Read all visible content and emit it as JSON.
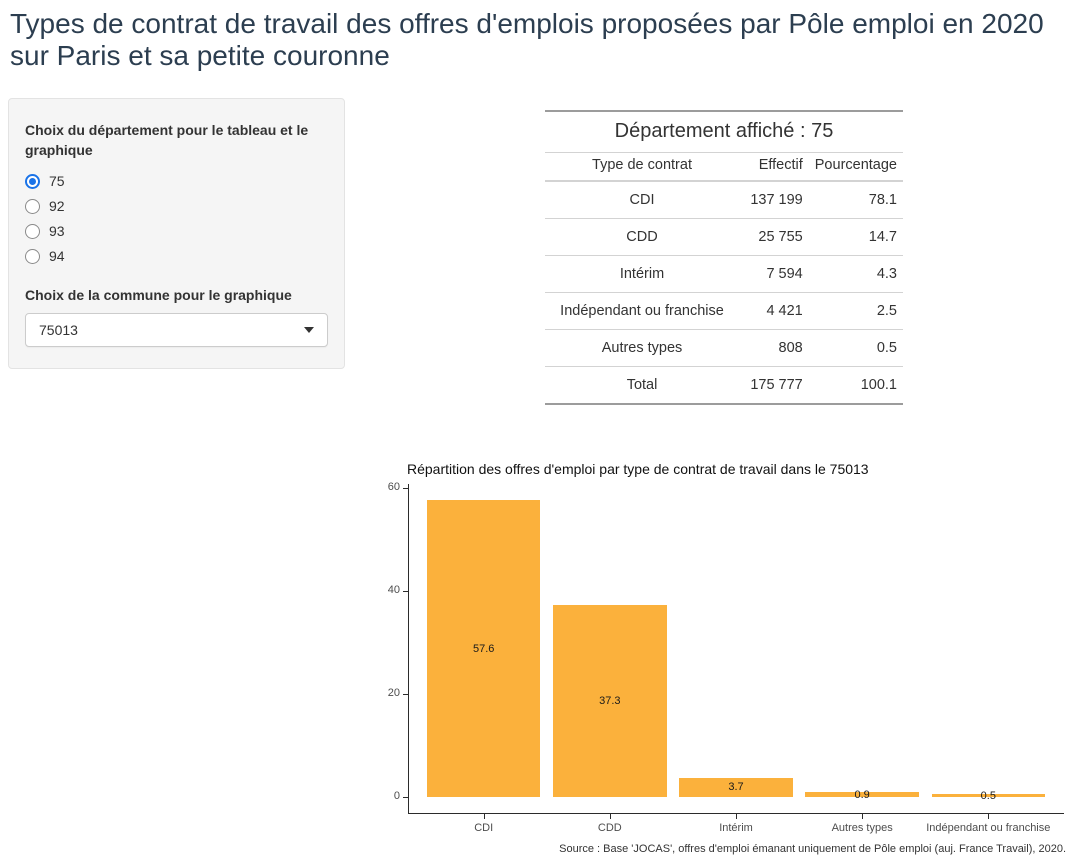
{
  "page": {
    "title": "Types de contrat de travail des offres d'emplois proposées par Pôle emploi en 2020 sur Paris et sa petite couronne"
  },
  "sidebar": {
    "dept_label": "Choix du département pour le tableau et le graphique",
    "dept_options": [
      {
        "label": "75",
        "selected": true
      },
      {
        "label": "92",
        "selected": false
      },
      {
        "label": "93",
        "selected": false
      },
      {
        "label": "94",
        "selected": false
      }
    ],
    "commune_label": "Choix de la commune pour le graphique",
    "commune_value": "75013"
  },
  "table": {
    "title": "Département affiché : 75",
    "columns": [
      "Type de contrat",
      "Effectif",
      "Pourcentage"
    ],
    "rows": [
      {
        "type": "CDI",
        "effectif": "137 199",
        "pourcentage": "78.1"
      },
      {
        "type": "CDD",
        "effectif": "25 755",
        "pourcentage": "14.7"
      },
      {
        "type": "Intérim",
        "effectif": "7 594",
        "pourcentage": "4.3"
      },
      {
        "type": "Indépendant ou franchise",
        "effectif": "4 421",
        "pourcentage": "2.5"
      },
      {
        "type": "Autres types",
        "effectif": "808",
        "pourcentage": "0.5"
      },
      {
        "type": "Total",
        "effectif": "175 777",
        "pourcentage": "100.1"
      }
    ]
  },
  "chart_data": {
    "type": "bar",
    "title": "Répartition des offres d'emploi par type de contrat de travail dans le 75013",
    "categories": [
      "CDI",
      "CDD",
      "Intérim",
      "Autres types",
      "Indépendant ou franchise"
    ],
    "values": [
      57.6,
      37.3,
      3.7,
      0.9,
      0.5
    ],
    "bar_labels": [
      "57.6",
      "37.3",
      "3.7",
      "0.9",
      "0.5"
    ],
    "xlabel": "",
    "ylabel": "",
    "ylim": [
      0,
      60
    ],
    "yticks": [
      0,
      20,
      40,
      60
    ],
    "grid": false,
    "legend": false,
    "bar_color": "#FBB13C",
    "caption": "Source : Base 'JOCAS', offres d'emploi émanant uniquement de Pôle emploi (auj. France Travail), 2020."
  },
  "colors": {
    "heading": "#2c3e50",
    "accent_blue": "#1a73e8",
    "bar_orange": "#FBB13C"
  }
}
